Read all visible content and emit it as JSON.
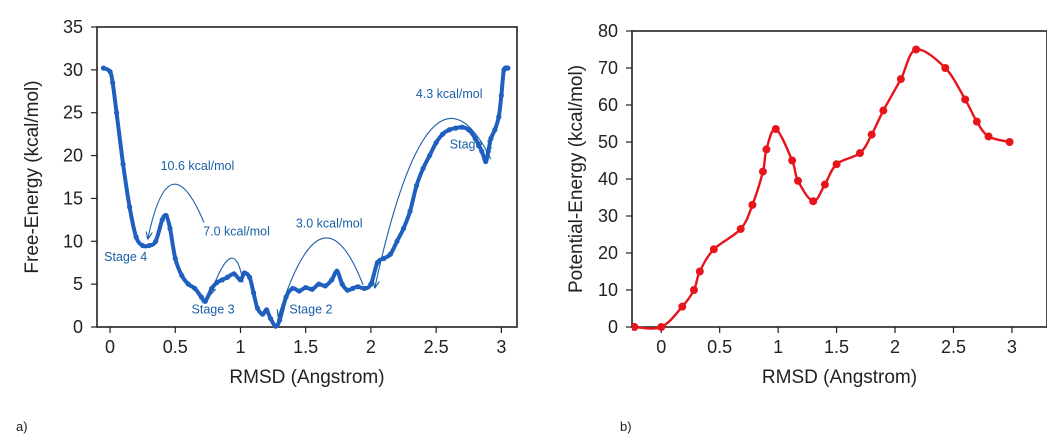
{
  "panel_labels": {
    "a": "a)",
    "b": "b)"
  },
  "chart_data": [
    {
      "type": "line",
      "xlabel": "RMSD (Angstrom)",
      "ylabel": "Free-Energy (kcal/mol)",
      "xlim": [
        -0.1,
        3.12
      ],
      "ylim": [
        0,
        35
      ],
      "xticks": [
        0,
        0.5,
        1,
        1.5,
        2,
        2.5,
        3
      ],
      "xtick_labels": [
        "0",
        "0.5",
        "1",
        "1.5",
        "2",
        "2.5",
        "3"
      ],
      "yticks": [
        0,
        5,
        10,
        15,
        20,
        25,
        30,
        35
      ],
      "ytick_labels": [
        "0",
        "5",
        "10",
        "15",
        "20",
        "25",
        "30",
        "35"
      ],
      "grid": false,
      "series": [
        {
          "color": "#1f5fbf",
          "x": [
            -0.05,
            0.0,
            0.02,
            0.05,
            0.1,
            0.15,
            0.2,
            0.25,
            0.3,
            0.35,
            0.4,
            0.43,
            0.46,
            0.5,
            0.55,
            0.6,
            0.65,
            0.7,
            0.73,
            0.78,
            0.82,
            0.86,
            0.9,
            0.95,
            1.0,
            1.03,
            1.07,
            1.1,
            1.13,
            1.17,
            1.2,
            1.23,
            1.27,
            1.3,
            1.35,
            1.4,
            1.45,
            1.5,
            1.55,
            1.6,
            1.65,
            1.7,
            1.74,
            1.78,
            1.82,
            1.86,
            1.9,
            1.95,
            2.0,
            2.05,
            2.1,
            2.15,
            2.2,
            2.25,
            2.3,
            2.35,
            2.4,
            2.45,
            2.5,
            2.55,
            2.6,
            2.65,
            2.7,
            2.75,
            2.8,
            2.85,
            2.88,
            2.9,
            2.92,
            2.95,
            2.98,
            3.0,
            3.02,
            3.05
          ],
          "y": [
            30.2,
            29.8,
            28.5,
            25.0,
            19.0,
            14.0,
            10.5,
            9.5,
            9.5,
            10.0,
            12.5,
            13.0,
            11.5,
            8.0,
            6.0,
            5.0,
            4.5,
            3.5,
            3.0,
            4.5,
            5.2,
            5.5,
            5.8,
            6.2,
            5.5,
            6.3,
            5.8,
            4.0,
            2.2,
            1.5,
            2.0,
            1.0,
            0.1,
            0.8,
            3.5,
            4.5,
            4.2,
            4.6,
            4.4,
            5.0,
            4.8,
            5.5,
            6.5,
            5.0,
            4.3,
            4.5,
            4.7,
            4.5,
            5.0,
            7.5,
            8.0,
            8.5,
            10.0,
            11.5,
            13.5,
            16.5,
            18.5,
            20.0,
            21.5,
            22.5,
            23.0,
            23.2,
            23.3,
            23.0,
            22.0,
            20.5,
            19.3,
            20.5,
            22.0,
            23.0,
            24.5,
            27.0,
            30.0,
            30.2
          ]
        }
      ],
      "annotations": [
        {
          "text": "4.3 kcal/mol",
          "x": 2.6,
          "y": 26.7
        },
        {
          "text": "Stage 1",
          "x": 2.77,
          "y": 20.8
        },
        {
          "text": "10.6 kcal/mol",
          "x": 0.67,
          "y": 18.3
        },
        {
          "text": "7.0 kcal/mol",
          "x": 0.97,
          "y": 10.7
        },
        {
          "text": "3.0 kcal/mol",
          "x": 1.68,
          "y": 11.6
        },
        {
          "text": "Stage 4",
          "x": 0.12,
          "y": 7.7
        },
        {
          "text": "Stage 3",
          "x": 0.79,
          "y": 1.6
        },
        {
          "text": "Stage 2",
          "x": 1.54,
          "y": 1.6
        }
      ]
    },
    {
      "type": "line",
      "xlabel": "RMSD (Angstrom)",
      "ylabel": "Potential-Energy (kcal/mol)",
      "xlim": [
        -0.25,
        3.3
      ],
      "ylim": [
        0,
        80
      ],
      "xticks": [
        0,
        0.5,
        1,
        1.5,
        2,
        2.5,
        3
      ],
      "xtick_labels": [
        "0",
        "0.5",
        "1",
        "1.5",
        "2",
        "2.5",
        "3"
      ],
      "yticks": [
        0,
        10,
        20,
        30,
        40,
        50,
        60,
        70,
        80
      ],
      "ytick_labels": [
        "0",
        "10",
        "20",
        "30",
        "40",
        "50",
        "60",
        "70",
        "80"
      ],
      "grid": false,
      "series": [
        {
          "color": "#e8141c",
          "x": [
            -0.23,
            0.0,
            0.18,
            0.28,
            0.33,
            0.45,
            0.68,
            0.78,
            0.87,
            0.9,
            0.98,
            1.12,
            1.17,
            1.3,
            1.4,
            1.5,
            1.7,
            1.8,
            1.9,
            2.05,
            2.18,
            2.43,
            2.6,
            2.7,
            2.8,
            2.98
          ],
          "y": [
            0.0,
            0.0,
            5.5,
            10.0,
            15.0,
            21.0,
            26.5,
            33.0,
            42.0,
            48.0,
            53.5,
            45.0,
            39.5,
            34.0,
            38.5,
            44.0,
            47.0,
            52.0,
            58.5,
            67.0,
            75.0,
            70.0,
            61.5,
            55.5,
            51.5,
            50.0
          ]
        }
      ]
    }
  ]
}
